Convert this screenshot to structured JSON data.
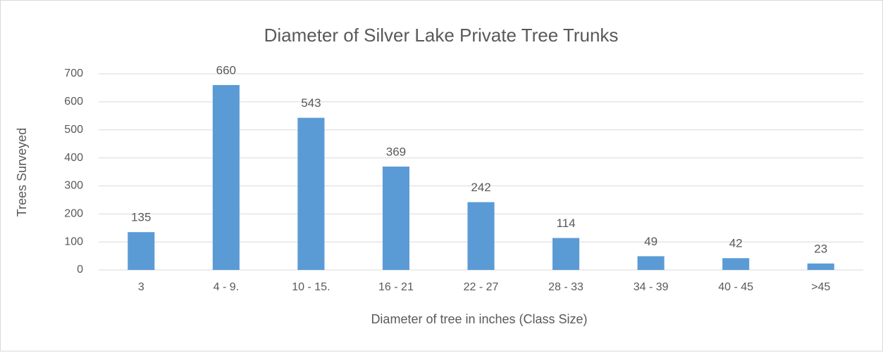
{
  "chart_data": {
    "type": "bar",
    "title": "Diameter of Silver Lake Private Tree Trunks",
    "x_label": "Diameter of tree in inches (Class Size)",
    "y_label": "Trees Surveyed",
    "categories": [
      "3",
      "4 - 9.",
      "10 - 15.",
      "16 - 21",
      "22 - 27",
      "28 - 33",
      "34 - 39",
      "40 - 45",
      ">45"
    ],
    "values": [
      135,
      660,
      543,
      369,
      242,
      114,
      49,
      42,
      23
    ],
    "color": "#5b9bd5",
    "ylim": [
      0,
      700
    ],
    "yticks": [
      0,
      100,
      200,
      300,
      400,
      500,
      600,
      700
    ],
    "grid": true
  }
}
